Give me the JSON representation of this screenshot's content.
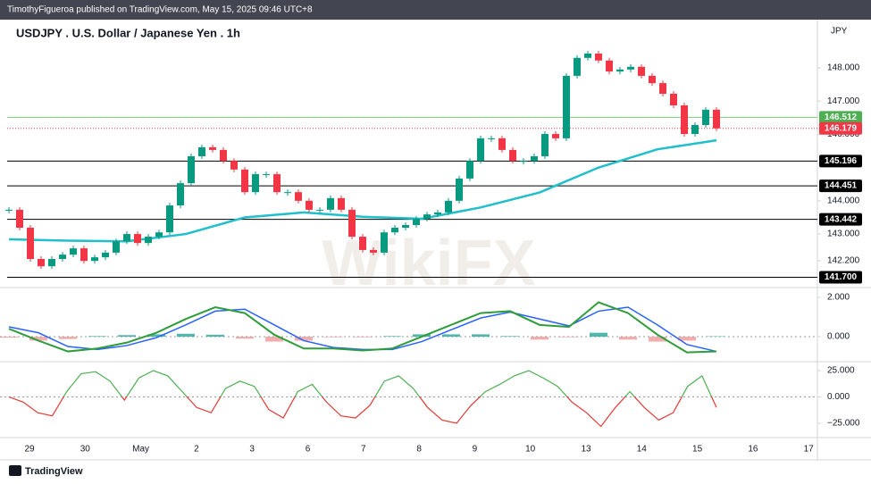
{
  "header": {
    "publisher_line": "TimothyFigueroa published on TradingView.com, May 15, 2025 09:46 UTC+8"
  },
  "chart_data": {
    "type": "candlestick",
    "title": "USDJPY . U.S. Dollar / Japanese Yen . 1h",
    "currency": "JPY",
    "watermark": "WikiFX",
    "up_color": "#089981",
    "down_color": "#f23645",
    "closes": [
      143.73,
      143.19,
      142.25,
      142.03,
      142.25,
      142.38,
      142.57,
      142.19,
      142.3,
      142.44,
      142.78,
      143.0,
      142.73,
      142.92,
      143.05,
      143.86,
      144.53,
      145.34,
      145.61,
      145.53,
      145.2,
      144.94,
      144.26,
      144.8,
      144.8,
      144.26,
      144.26,
      144.0,
      143.73,
      143.73,
      144.08,
      143.73,
      142.92,
      142.52,
      142.44,
      143.05,
      143.19,
      143.27,
      143.46,
      143.59,
      143.65,
      144.0,
      144.67,
      145.2,
      145.88,
      145.88,
      145.53,
      145.2,
      145.2,
      145.34,
      146.01,
      145.88,
      147.76,
      148.3,
      148.43,
      148.22,
      147.89,
      147.95,
      148.03,
      147.76,
      147.54,
      147.22,
      146.87,
      146.01,
      146.28,
      146.74,
      146.18
    ],
    "moving_average": {
      "color": "#1fbfcc",
      "values": [
        142.84,
        142.8,
        142.78,
        143.0,
        143.5,
        143.65,
        143.52,
        143.46,
        143.8,
        144.25,
        145.0,
        145.55,
        145.82
      ]
    },
    "ylim": [
      141.39,
      149.45
    ],
    "yticks": [
      {
        "value": 148,
        "label": "148.000"
      },
      {
        "value": 147,
        "label": "147.000"
      },
      {
        "value": 146,
        "label": "146.000"
      },
      {
        "value": 144,
        "label": "144.000"
      },
      {
        "value": 143,
        "label": "143.000"
      },
      {
        "value": 142.2,
        "label": "142.200"
      }
    ],
    "levels": [
      {
        "value": 146.512,
        "label": "146.512",
        "color": "#4caf50",
        "style": "solid"
      },
      {
        "value": 146.179,
        "label": "146.179",
        "color": "#f23645",
        "style": "dotted"
      },
      {
        "value": 145.196,
        "label": "145.196",
        "color": "#000000",
        "style": "solid"
      },
      {
        "value": 144.451,
        "label": "144.451",
        "color": "#000000",
        "style": "solid"
      },
      {
        "value": 143.442,
        "label": "143.442",
        "color": "#000000",
        "style": "solid"
      },
      {
        "value": 141.7,
        "label": "141.700",
        "color": "#000000",
        "style": "solid"
      }
    ],
    "x_labels": [
      "29",
      "30",
      "May",
      "2",
      "3",
      "6",
      "7",
      "8",
      "9",
      "10",
      "13",
      "14",
      "15",
      "16",
      "17"
    ],
    "macd": {
      "fast_color": "#2e9d3a",
      "signal_color": "#2962ff",
      "fast": [
        0.4,
        -0.2,
        -0.75,
        -0.6,
        -0.3,
        0.2,
        0.9,
        1.5,
        1.2,
        0.1,
        -0.6,
        -0.6,
        -0.7,
        -0.6,
        0.0,
        0.6,
        1.2,
        1.3,
        0.6,
        0.5,
        1.75,
        1.2,
        0.1,
        -0.8,
        -0.75
      ],
      "signal": [
        0.5,
        0.2,
        -0.5,
        -0.65,
        -0.45,
        -0.05,
        0.6,
        1.3,
        1.4,
        0.6,
        -0.2,
        -0.55,
        -0.65,
        -0.65,
        -0.25,
        0.35,
        0.95,
        1.25,
        0.9,
        0.55,
        1.3,
        1.5,
        0.6,
        -0.4,
        -0.75
      ],
      "histogram": [
        -0.05,
        -0.2,
        -0.12,
        0.03,
        0.08,
        0.12,
        0.15,
        0.1,
        -0.1,
        -0.25,
        -0.2,
        -0.03,
        -0.03,
        0.03,
        0.12,
        0.12,
        0.12,
        0.03,
        -0.15,
        -0.03,
        0.2,
        -0.15,
        -0.25,
        -0.2,
        0.02
      ],
      "ylim": [
        -1.27,
        2.5
      ],
      "yticks": [
        {
          "value": 2,
          "label": "2.000"
        },
        {
          "value": 0,
          "label": "0.000"
        }
      ]
    },
    "oscillator": {
      "up_color": "#4caf50",
      "down_color": "#e53935",
      "values": [
        0,
        -5,
        -15,
        -18,
        5,
        22,
        24,
        15,
        -3,
        18,
        25,
        20,
        5,
        -10,
        -15,
        8,
        15,
        10,
        -12,
        -20,
        5,
        12,
        -5,
        -18,
        -20,
        -8,
        15,
        20,
        8,
        -10,
        -22,
        -25,
        -8,
        5,
        12,
        20,
        25,
        18,
        10,
        -5,
        -15,
        -28,
        -10,
        5,
        -10,
        -22,
        -15,
        10,
        20,
        -10
      ],
      "ylim": [
        -38.6,
        33.5
      ],
      "yticks": [
        {
          "value": 25,
          "label": "25.000"
        },
        {
          "value": 0,
          "label": "0.000"
        },
        {
          "value": -25,
          "label": "−25.000"
        }
      ]
    }
  },
  "footer": {
    "brand": "TradingView"
  }
}
